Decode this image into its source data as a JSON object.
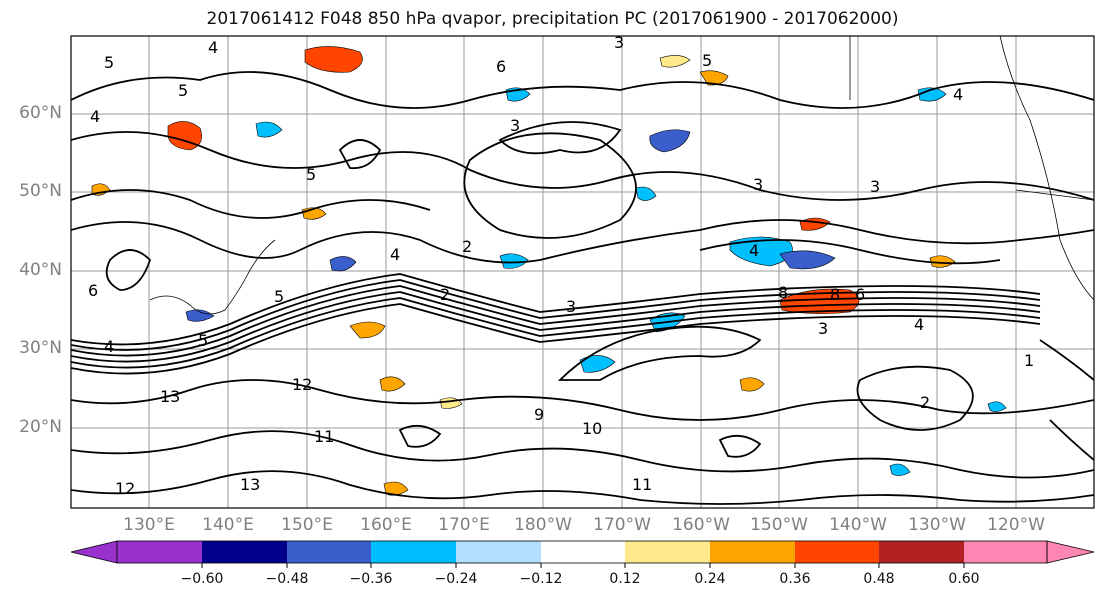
{
  "title": "2017061412 F048 850 hPa qvapor, precipitation PC (2017061900 - 2017062000)",
  "latitude_labels": [
    "60°N",
    "50°N",
    "40°N",
    "30°N",
    "20°N"
  ],
  "longitude_labels": [
    "130°E",
    "140°E",
    "150°E",
    "160°E",
    "170°E",
    "180°W",
    "170°W",
    "160°W",
    "150°W",
    "140°W",
    "130°W",
    "120°W"
  ],
  "colorbar": {
    "ticks": [
      "−0.60",
      "−0.48",
      "−0.36",
      "−0.24",
      "−0.12",
      "0.12",
      "0.24",
      "0.36",
      "0.48",
      "0.60"
    ],
    "colors": [
      "#9932CC",
      "#00008B",
      "#3A5FCD",
      "#00BFFF",
      "#B2DFFF",
      "#FFFFFF",
      "#FFE98A",
      "#FFA500",
      "#FF4500",
      "#B22222",
      "#FF85B3"
    ]
  },
  "contour_labels": [
    "5",
    "4",
    "5",
    "4",
    "3",
    "6",
    "5",
    "4",
    "3",
    "3",
    "3",
    "2",
    "4",
    "4",
    "5",
    "8",
    "8",
    "6",
    "4",
    "3",
    "5",
    "6",
    "5",
    "4",
    "3",
    "2",
    "13",
    "12",
    "11",
    "10",
    "9",
    "13",
    "12",
    "11",
    "2",
    "1"
  ]
}
